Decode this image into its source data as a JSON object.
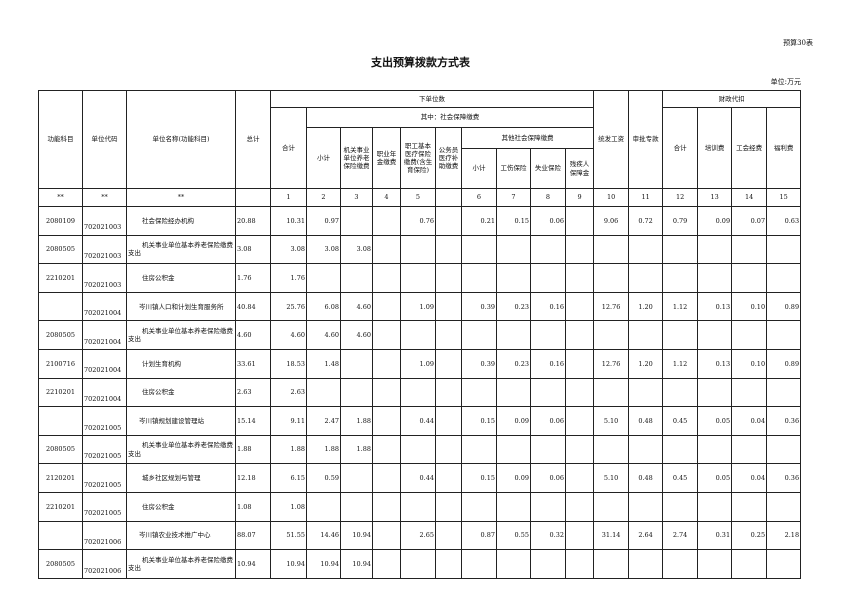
{
  "form_no": "预算30表",
  "title": "支出预算拨款方式表",
  "unit": "单位:万元",
  "headers": {
    "func_subject": "功能科目",
    "unit_code": "单位代码",
    "unit_name": "单位名称(功能科目)",
    "total": "总计",
    "lower_units": "下单位数",
    "sum": "合计",
    "social_security": "其中：社会保障缴费",
    "subtotal": "小计",
    "pension": "机关事业单位养老保险缴费",
    "annuity": "职业年金缴费",
    "medical": "职工基本医疗保险缴费(含生育保险)",
    "civil_medical": "公务员医疗补助缴费",
    "other_ss": "其他社会保障缴费",
    "other_subtotal": "小计",
    "injury": "工伤保险",
    "unemployment": "失业保险",
    "disabled": "残疾人保障金",
    "unified_salary": "统发工资",
    "approved_funds": "审批专款",
    "fiscal_withholding": "财政代扣",
    "fw_sum": "合计",
    "training": "培训费",
    "union": "工会经费",
    "welfare": "福利费"
  },
  "index_row": [
    "**",
    "**",
    "**",
    "",
    "1",
    "2",
    "3",
    "4",
    "5",
    "",
    "6",
    "7",
    "8",
    "9",
    "10",
    "11",
    "12",
    "13",
    "14",
    "15"
  ],
  "rows": [
    [
      "2080109",
      "702021003",
      "社会保险经办机构",
      "20.88",
      "10.31",
      "0.97",
      "",
      "",
      "0.76",
      "",
      "0.21",
      "0.15",
      "0.06",
      "",
      "9.06",
      "0.72",
      "0.79",
      "0.09",
      "0.07",
      "0.63"
    ],
    [
      "2080505",
      "702021003",
      "机关事业单位基本养老保险缴费支出",
      "3.08",
      "3.08",
      "3.08",
      "3.08",
      "",
      "",
      "",
      "",
      "",
      "",
      "",
      "",
      "",
      "",
      "",
      "",
      ""
    ],
    [
      "2210201",
      "702021003",
      "住房公积金",
      "1.76",
      "1.76",
      "",
      "",
      "",
      "",
      "",
      "",
      "",
      "",
      "",
      "",
      "",
      "",
      "",
      "",
      ""
    ],
    [
      "",
      "702021004",
      "岑川镇人口和计划生育服务所",
      "40.84",
      "25.76",
      "6.08",
      "4.60",
      "",
      "1.09",
      "",
      "0.39",
      "0.23",
      "0.16",
      "",
      "12.76",
      "1.20",
      "1.12",
      "0.13",
      "0.10",
      "0.89"
    ],
    [
      "2080505",
      "702021004",
      "机关事业单位基本养老保险缴费支出",
      "4.60",
      "4.60",
      "4.60",
      "4.60",
      "",
      "",
      "",
      "",
      "",
      "",
      "",
      "",
      "",
      "",
      "",
      "",
      ""
    ],
    [
      "2100716",
      "702021004",
      "计划生育机构",
      "33.61",
      "18.53",
      "1.48",
      "",
      "",
      "1.09",
      "",
      "0.39",
      "0.23",
      "0.16",
      "",
      "12.76",
      "1.20",
      "1.12",
      "0.13",
      "0.10",
      "0.89"
    ],
    [
      "2210201",
      "702021004",
      "住房公积金",
      "2.63",
      "2.63",
      "",
      "",
      "",
      "",
      "",
      "",
      "",
      "",
      "",
      "",
      "",
      "",
      "",
      "",
      ""
    ],
    [
      "",
      "702021005",
      "岑川镇规划建设管理站",
      "15.14",
      "9.11",
      "2.47",
      "1.88",
      "",
      "0.44",
      "",
      "0.15",
      "0.09",
      "0.06",
      "",
      "5.10",
      "0.48",
      "0.45",
      "0.05",
      "0.04",
      "0.36"
    ],
    [
      "2080505",
      "702021005",
      "机关事业单位基本养老保险缴费支出",
      "1.88",
      "1.88",
      "1.88",
      "1.88",
      "",
      "",
      "",
      "",
      "",
      "",
      "",
      "",
      "",
      "",
      "",
      "",
      ""
    ],
    [
      "2120201",
      "702021005",
      "城乡社区规划与管理",
      "12.18",
      "6.15",
      "0.59",
      "",
      "",
      "0.44",
      "",
      "0.15",
      "0.09",
      "0.06",
      "",
      "5.10",
      "0.48",
      "0.45",
      "0.05",
      "0.04",
      "0.36"
    ],
    [
      "2210201",
      "702021005",
      "住房公积金",
      "1.08",
      "1.08",
      "",
      "",
      "",
      "",
      "",
      "",
      "",
      "",
      "",
      "",
      "",
      "",
      "",
      "",
      ""
    ],
    [
      "",
      "702021006",
      "岑川镇农业技术推广中心",
      "88.07",
      "51.55",
      "14.46",
      "10.94",
      "",
      "2.65",
      "",
      "0.87",
      "0.55",
      "0.32",
      "",
      "31.14",
      "2.64",
      "2.74",
      "0.31",
      "0.25",
      "2.18"
    ],
    [
      "2080505",
      "702021006",
      "机关事业单位基本养老保险缴费支出",
      "10.94",
      "10.94",
      "10.94",
      "10.94",
      "",
      "",
      "",
      "",
      "",
      "",
      "",
      "",
      "",
      "",
      "",
      "",
      ""
    ]
  ]
}
